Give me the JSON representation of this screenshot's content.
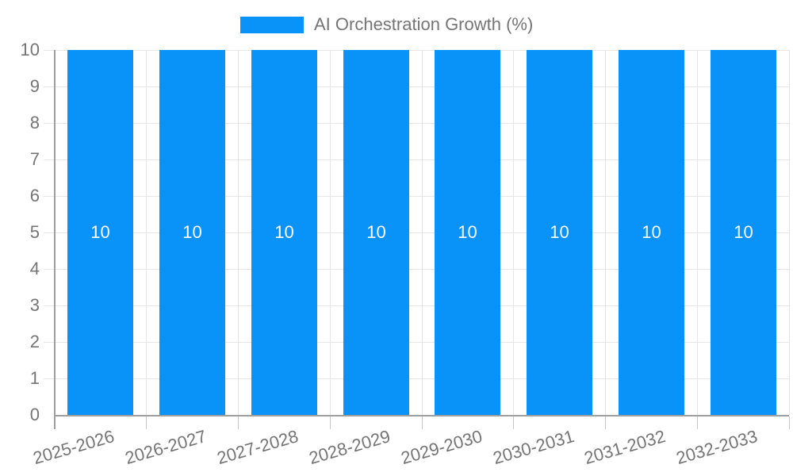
{
  "chart_data": {
    "type": "bar",
    "title": "AI Orchestration Growth (%)",
    "categories": [
      "2025-2026",
      "2026-2027",
      "2027-2028",
      "2028-2029",
      "2029-2030",
      "2030-2031",
      "2031-2032",
      "2032-2033"
    ],
    "series": [
      {
        "name": "AI Orchestration Growth (%)",
        "values": [
          10,
          10,
          10,
          10,
          10,
          10,
          10,
          10
        ]
      }
    ],
    "bar_value_labels": [
      "10",
      "10",
      "10",
      "10",
      "10",
      "10",
      "10",
      "10"
    ],
    "xlabel": "",
    "ylabel": "",
    "ylim": [
      0,
      10
    ],
    "yticks_desc": [
      "10",
      "9",
      "8",
      "7",
      "6",
      "5",
      "4",
      "3",
      "2",
      "1",
      "0"
    ],
    "grid": "on",
    "legend_position": "top-center",
    "colors": {
      "series": "#0992f8",
      "axis_label": "#757575",
      "gridline": "#e6e6e6",
      "axis_line": "#9e9e9e",
      "bar_label": "#ffffff",
      "background": "#ffffff"
    }
  }
}
